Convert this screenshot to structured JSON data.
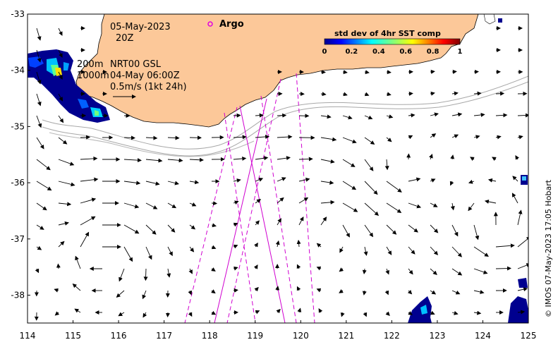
{
  "annotations": {
    "date": "05-May-2023",
    "time": "20Z",
    "argo_label": "Argo",
    "depth_200": "200m",
    "depth_1000": "1000m",
    "product": "NRT00 GSL",
    "product_time": "04-May 06:00Z",
    "scale_label": "0.5m/s (1kt 24h)"
  },
  "colorbar": {
    "title": "std dev of 4hr SST comp",
    "ticks": [
      "0",
      "0.2",
      "0.4",
      "0.6",
      "0.8",
      "1"
    ]
  },
  "credit": "© IMOS 07-May-2023 17:05 Hobart",
  "axes": {
    "x_ticks": [
      "114",
      "115",
      "116",
      "117",
      "118",
      "119",
      "120",
      "121",
      "122",
      "123",
      "124",
      "125"
    ],
    "y_ticks": [
      "-33",
      "-34",
      "-35",
      "-36",
      "-37",
      "-38"
    ]
  },
  "colors": {
    "land": "#fcc899",
    "argo": "#e000e0",
    "track": "#d000d0",
    "contour": "#a8a8a8"
  }
}
